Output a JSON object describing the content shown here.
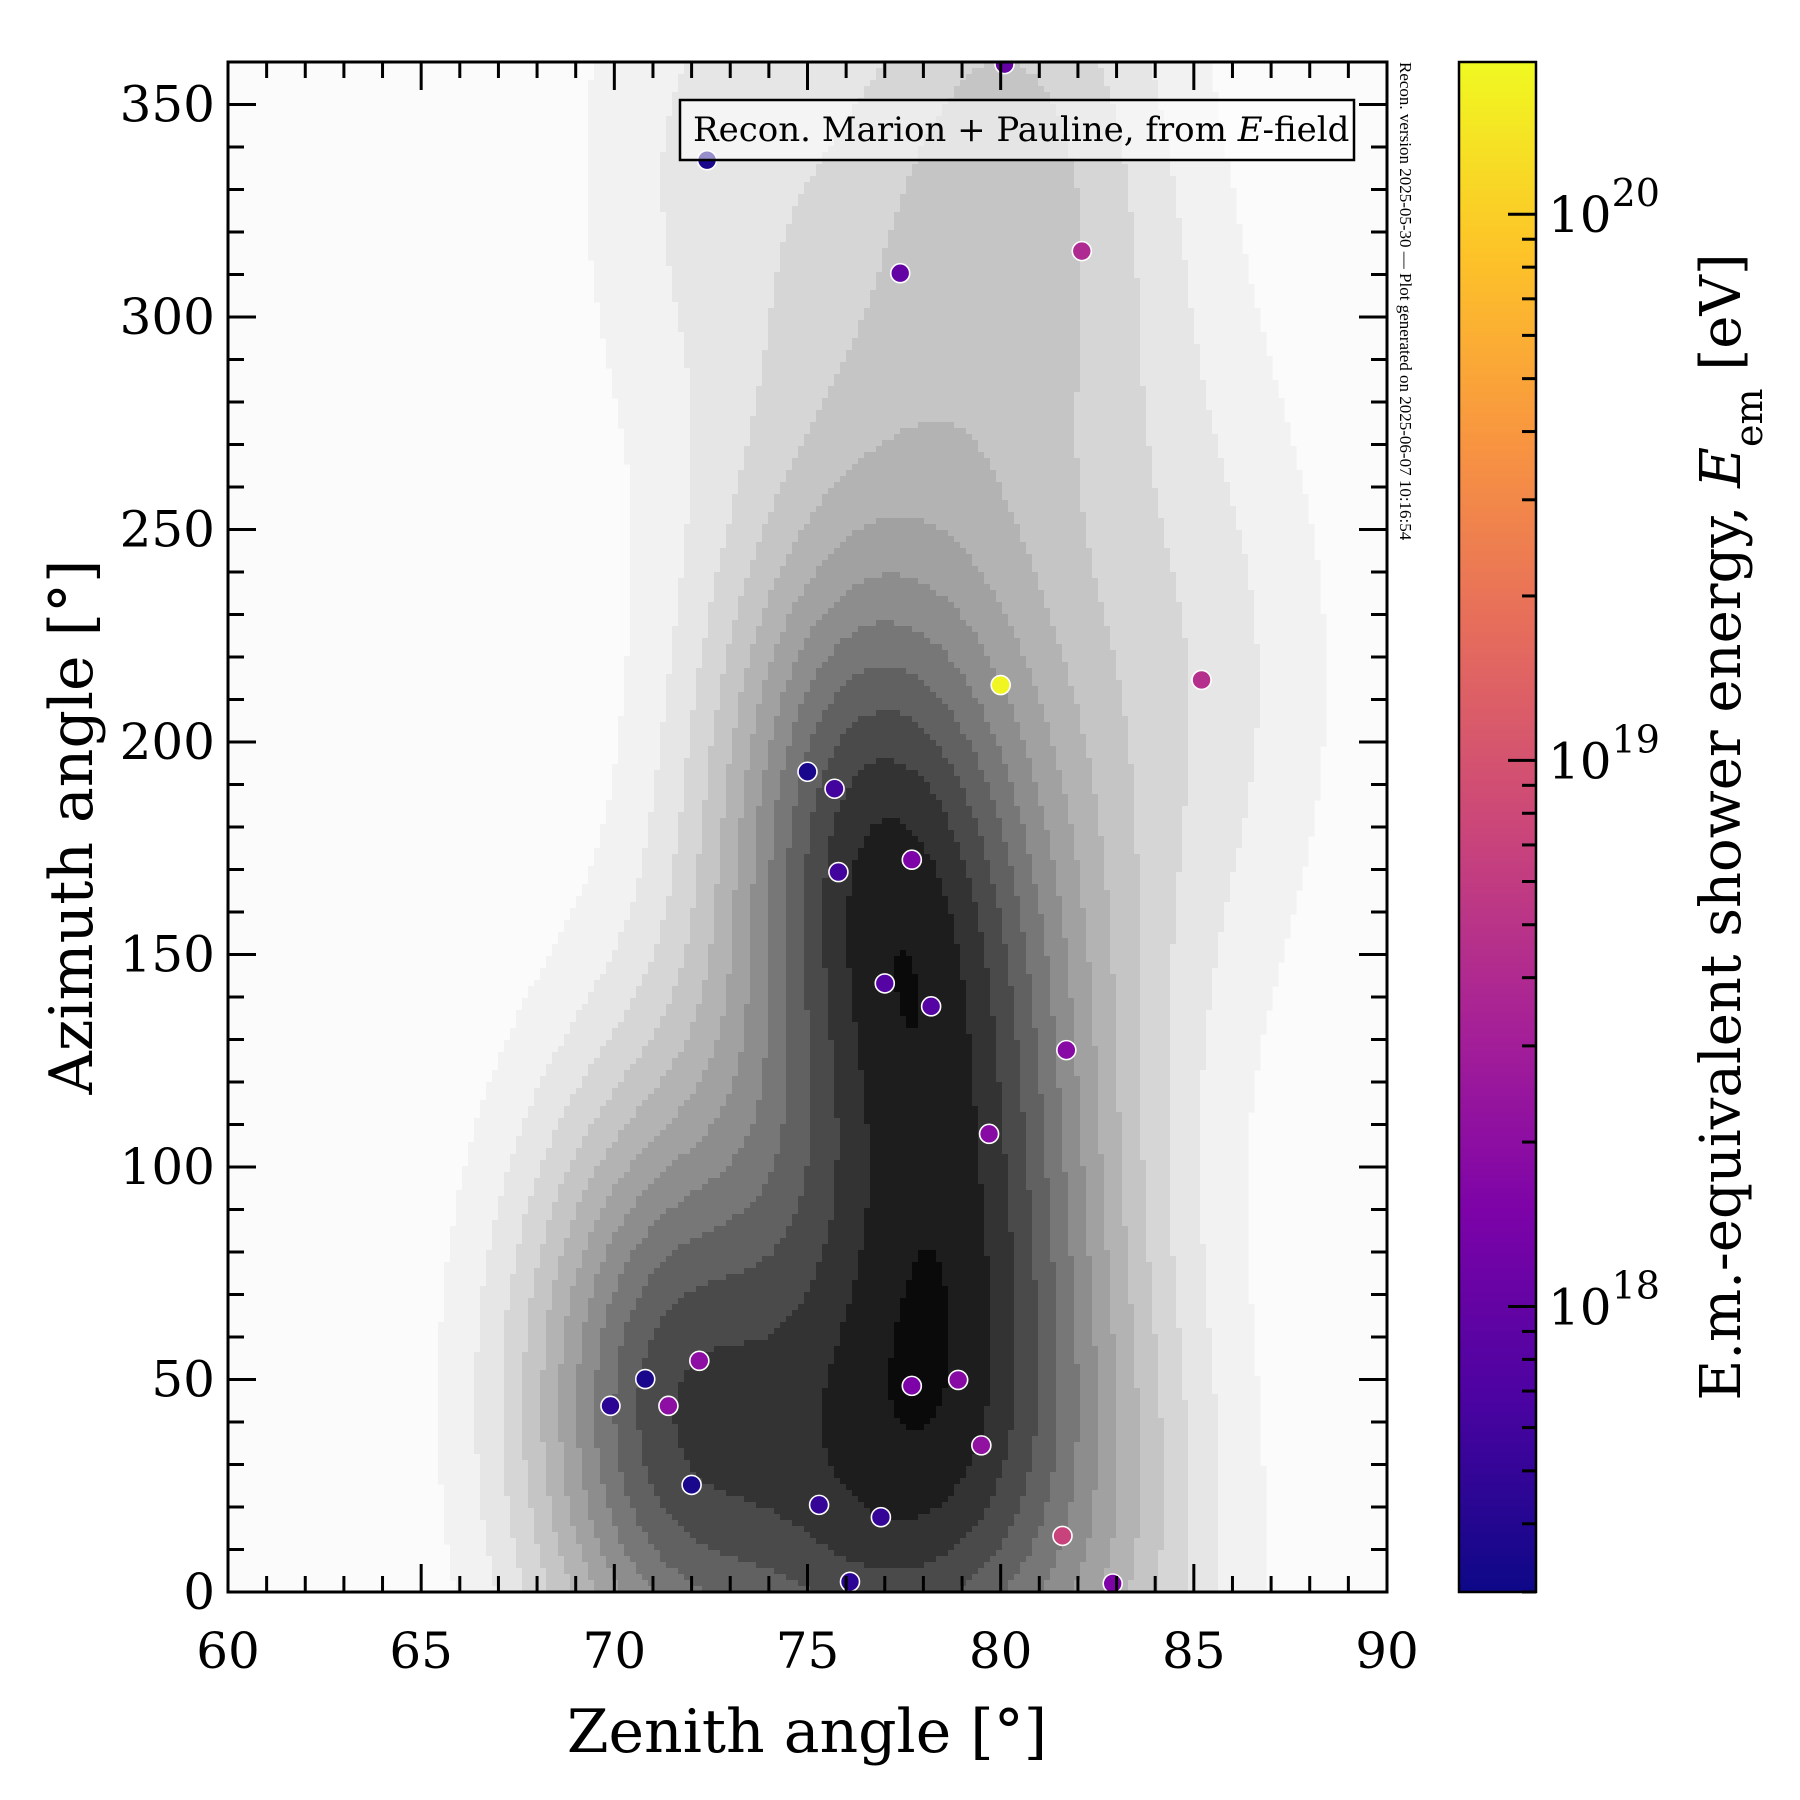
{
  "chart_data": {
    "type": "scatter",
    "subtype": "scatter over filled density contours (KDE), colored by energy",
    "xlabel": "Zenith angle [°]",
    "ylabel": "Azimuth angle [°]",
    "xlim": [
      60,
      90
    ],
    "ylim": [
      0,
      360
    ],
    "xticks": [
      60,
      65,
      70,
      75,
      80,
      85,
      90
    ],
    "xtick_labels": [
      "60",
      "65",
      "70",
      "75",
      "80",
      "85",
      "90"
    ],
    "yticks": [
      0,
      50,
      100,
      150,
      200,
      250,
      300,
      350
    ],
    "ytick_labels": [
      "0",
      "50",
      "100",
      "150",
      "200",
      "250",
      "300",
      "350"
    ],
    "grid": false,
    "legend": {
      "text_pre": "Recon. Marion + Pauline, from ",
      "text_italic": "E",
      "text_post": "-field",
      "placement": "top-right"
    },
    "side_note": "Recon. version 2025-05-30 — Plot generated on 2025-06-07 10:16:54",
    "colorbar": {
      "label_pre": "E.m.-equivalent shower energy, ",
      "label_italic": "E",
      "label_sub": "em",
      "label_post": " [eV]",
      "scale": "log",
      "colormap": "plasma",
      "range": [
        3e+17,
        1.9e+20
      ],
      "major_ticks": [
        1e+18,
        1e+19,
        1e+20
      ],
      "major_tick_labels": [
        {
          "base": "10",
          "exp": "18"
        },
        {
          "base": "10",
          "exp": "19"
        },
        {
          "base": "10",
          "exp": "20"
        }
      ]
    },
    "contour": {
      "levels": 10,
      "colormap": "Greys",
      "source": "kernel density estimate of the points"
    },
    "points": [
      {
        "zenith": 80.1,
        "azimuth": 359.5,
        "energy": 1e+18
      },
      {
        "zenith": 72.4,
        "azimuth": 336.9,
        "energy": 3.5e+17
      },
      {
        "zenith": 77.4,
        "azimuth": 310.3,
        "energy": 1e+18
      },
      {
        "zenith": 82.1,
        "azimuth": 315.5,
        "energy": 4e+18
      },
      {
        "zenith": 80.0,
        "azimuth": 213.4,
        "energy": 1.8e+20
      },
      {
        "zenith": 85.2,
        "azimuth": 214.6,
        "energy": 4.5e+18
      },
      {
        "zenith": 75.0,
        "azimuth": 193.0,
        "energy": 3.5e+17
      },
      {
        "zenith": 75.7,
        "azimuth": 189.0,
        "energy": 6e+17
      },
      {
        "zenith": 75.8,
        "azimuth": 169.4,
        "energy": 6e+17
      },
      {
        "zenith": 77.7,
        "azimuth": 172.3,
        "energy": 1.5e+18
      },
      {
        "zenith": 77.0,
        "azimuth": 143.2,
        "energy": 8e+17
      },
      {
        "zenith": 78.2,
        "azimuth": 137.8,
        "energy": 8e+17
      },
      {
        "zenith": 81.7,
        "azimuth": 127.5,
        "energy": 1.8e+18
      },
      {
        "zenith": 79.7,
        "azimuth": 107.8,
        "energy": 1.8e+18
      },
      {
        "zenith": 72.2,
        "azimuth": 54.4,
        "energy": 2e+18
      },
      {
        "zenith": 70.8,
        "azimuth": 50.1,
        "energy": 3.5e+17
      },
      {
        "zenith": 69.9,
        "azimuth": 43.8,
        "energy": 4.5e+17
      },
      {
        "zenith": 71.4,
        "azimuth": 43.8,
        "energy": 2e+18
      },
      {
        "zenith": 77.7,
        "azimuth": 48.5,
        "energy": 1.5e+18
      },
      {
        "zenith": 78.9,
        "azimuth": 49.9,
        "energy": 1.8e+18
      },
      {
        "zenith": 79.5,
        "azimuth": 34.5,
        "energy": 2.2e+18
      },
      {
        "zenith": 72.0,
        "azimuth": 25.2,
        "energy": 3.5e+17
      },
      {
        "zenith": 75.3,
        "azimuth": 20.5,
        "energy": 5e+17
      },
      {
        "zenith": 76.9,
        "azimuth": 17.6,
        "energy": 5e+17
      },
      {
        "zenith": 81.6,
        "azimuth": 13.2,
        "energy": 7e+18
      },
      {
        "zenith": 76.1,
        "azimuth": 2.4,
        "energy": 4.5e+17
      },
      {
        "zenith": 82.9,
        "azimuth": 2.0,
        "energy": 1.5e+18
      }
    ]
  }
}
